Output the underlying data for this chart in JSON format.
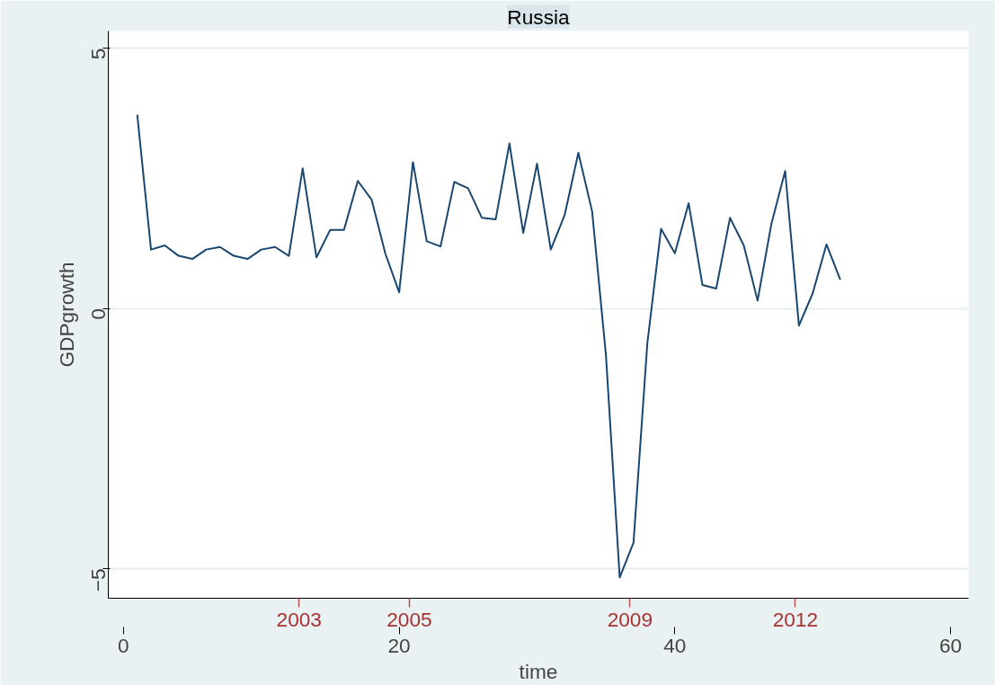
{
  "chart_data": {
    "type": "line",
    "title": "Russia",
    "xlabel": "time",
    "ylabel": "GDPgrowth",
    "x": [
      1,
      2,
      3,
      4,
      5,
      6,
      7,
      8,
      9,
      10,
      11,
      12,
      13,
      14,
      15,
      16,
      17,
      18,
      19,
      20,
      21,
      22,
      23,
      24,
      25,
      26,
      27,
      28,
      29,
      30,
      31,
      32,
      33,
      34,
      35,
      36,
      37,
      38,
      39,
      40,
      41,
      42,
      43,
      44,
      45,
      46,
      47,
      48,
      49,
      50,
      51,
      52
    ],
    "series": [
      {
        "color": "#1a476f",
        "values": [
          3.72,
          1.13,
          1.21,
          1.01,
          0.95,
          1.13,
          1.18,
          1.01,
          0.95,
          1.13,
          1.18,
          1.01,
          2.69,
          0.98,
          1.51,
          1.51,
          2.45,
          2.09,
          1.05,
          0.31,
          2.81,
          1.29,
          1.19,
          2.43,
          2.31,
          1.74,
          1.71,
          3.17,
          1.45,
          2.78,
          1.13,
          1.79,
          2.99,
          1.86,
          -0.9,
          -5.17,
          -4.5,
          -0.68,
          1.53,
          1.06,
          2.02,
          0.45,
          0.38,
          1.74,
          1.21,
          0.15,
          1.62,
          2.64,
          -0.33,
          0.29,
          1.23,
          0.55
        ]
      }
    ],
    "xlim": [
      -1.1,
      61.3
    ],
    "ylim": [
      -5.57,
      5.33
    ],
    "xticks": [
      0,
      20,
      40,
      60
    ],
    "yticks": [
      -5,
      0,
      5
    ],
    "grid": "y",
    "marker": "none",
    "line_style": "solid",
    "x2lim": [
      1999.54,
      2015.14
    ],
    "x2ticks": [
      2003,
      2005,
      2009,
      2012
    ]
  }
}
